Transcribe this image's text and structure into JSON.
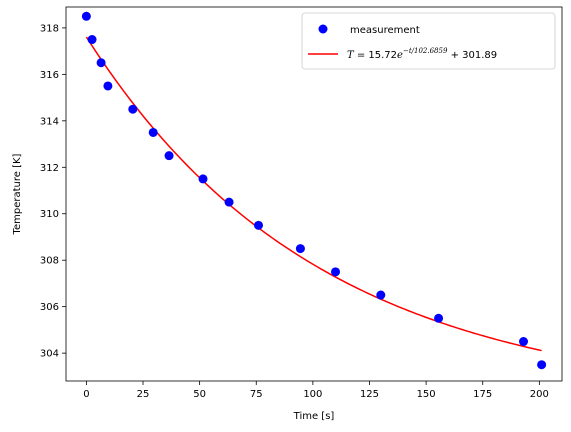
{
  "chart_data": {
    "type": "scatter",
    "title": "",
    "xlabel": "Time [s]",
    "ylabel": "Temperature [K]",
    "xlim": [
      -9,
      210
    ],
    "ylim": [
      302.8,
      318.9
    ],
    "xticks": [
      0,
      25,
      50,
      75,
      100,
      125,
      150,
      175,
      200
    ],
    "yticks": [
      304,
      306,
      308,
      310,
      312,
      314,
      316,
      318
    ],
    "grid": false,
    "legend_position": "top-right",
    "series": [
      {
        "name": "measurement",
        "kind": "scatter",
        "color": "#0000ff",
        "x": [
          0,
          2.5,
          6.5,
          9.5,
          20.5,
          29.5,
          36.5,
          51.5,
          63,
          76,
          94.5,
          110,
          130,
          155.5,
          193,
          201
        ],
        "y": [
          318.5,
          317.5,
          316.5,
          315.5,
          314.5,
          313.5,
          312.5,
          311.5,
          310.5,
          309.5,
          308.5,
          307.5,
          306.5,
          305.5,
          304.5,
          303.5
        ]
      },
      {
        "name": "T = 15.72e^{-t/102.6859} + 301.89",
        "kind": "line",
        "color": "#ff0000",
        "amplitude": 15.72,
        "tau": 102.6859,
        "offset": 301.89,
        "x_range": [
          0,
          201
        ]
      }
    ],
    "legend": {
      "measurement_label": "measurement",
      "fit_label_var": "T",
      "fit_label_eq": " = 15.72",
      "fit_label_e": "e",
      "fit_label_exp": "−t/102.6859",
      "fit_label_tail": " + 301.89"
    }
  }
}
